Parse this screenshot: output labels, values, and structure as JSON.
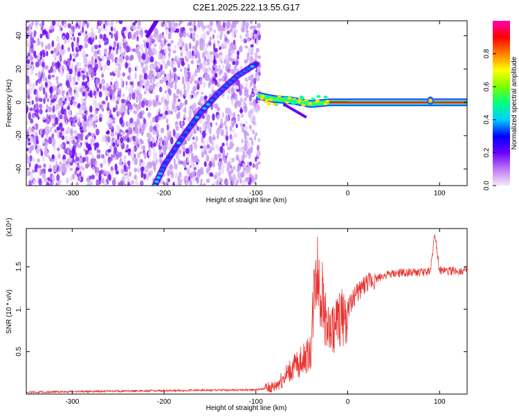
{
  "title": "C2E1.2025.222.13.55.G17",
  "chart_data": [
    {
      "type": "heatmap",
      "xlabel": "Height of straight line (km)",
      "ylabel": "Frequency (Hz)",
      "xlim": [
        -350,
        130
      ],
      "ylim": [
        -50,
        49
      ],
      "x_ticks": [
        -300,
        -200,
        -100,
        0,
        100
      ],
      "y_ticks": [
        -40,
        -20,
        0,
        20,
        40
      ],
      "noise_region_x": [
        -350,
        -96
      ],
      "trace_main": [
        [
          -210,
          -50
        ],
        [
          -200,
          -38
        ],
        [
          -180,
          -21
        ],
        [
          -160,
          -6
        ],
        [
          -140,
          6
        ],
        [
          -120,
          16
        ],
        [
          -100,
          23
        ]
      ],
      "trace_upper": [
        [
          -218,
          40
        ],
        [
          -208,
          49
        ]
      ],
      "trace_zero": [
        [
          -98,
          4
        ],
        [
          -80,
          2
        ],
        [
          -60,
          1
        ],
        [
          -40,
          -1
        ],
        [
          -20,
          0
        ],
        [
          0,
          0
        ],
        [
          130,
          0
        ]
      ],
      "colorbar": {
        "label": "Normalized spectral amplitude",
        "range": [
          0,
          1
        ],
        "ticks": [
          "0.0",
          "0.2",
          "0.4",
          "0.6",
          "0.8"
        ],
        "colors": [
          "#f3e9fb",
          "#c079f5",
          "#6b00ff",
          "#0000ff",
          "#00cfff",
          "#00ff80",
          "#7cff00",
          "#ffff00",
          "#ff8000",
          "#ff0000",
          "#ff00b0"
        ]
      }
    },
    {
      "type": "line",
      "xlabel": "Height of straight line (km)",
      "ylabel": "SNR (10 * v/v)",
      "y_multiplier": "(x10⁴)",
      "xlim": [
        -350,
        130
      ],
      "ylim": [
        0,
        1.95
      ],
      "x_ticks": [
        -300,
        -200,
        -100,
        0,
        100
      ],
      "y_ticks": [
        0.5,
        1.0,
        1.5
      ],
      "y_tick_labels": [
        "0.5",
        "1.",
        "1.5"
      ],
      "color": "#e8312f",
      "x": [
        -350,
        -300,
        -200,
        -100,
        -80,
        -60,
        -40,
        -35,
        -20,
        0,
        10,
        20,
        40,
        60,
        80,
        90,
        95,
        100,
        130
      ],
      "y": [
        0.02,
        0.03,
        0.04,
        0.05,
        0.08,
        0.3,
        0.5,
        1.55,
        0.7,
        1.0,
        1.2,
        1.3,
        1.4,
        1.43,
        1.43,
        1.45,
        1.9,
        1.45,
        1.45
      ]
    }
  ]
}
